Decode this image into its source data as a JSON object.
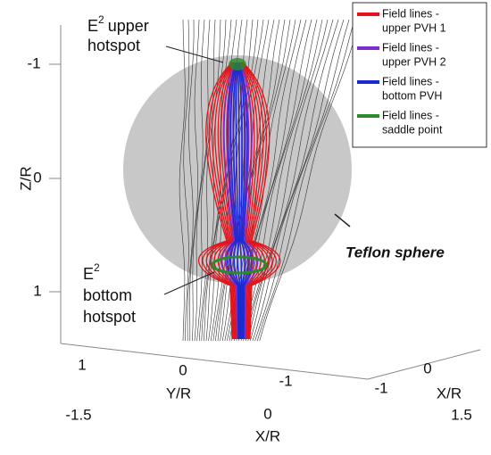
{
  "legend": [
    {
      "lines": [
        "Field lines -",
        "upper PVH 1"
      ],
      "color": "#e3141c"
    },
    {
      "lines": [
        "Field lines -",
        "upper PVH 2"
      ],
      "color": "#7b2fc8"
    },
    {
      "lines": [
        "Field lines -",
        "bottom PVH"
      ],
      "color": "#1b2bd1"
    },
    {
      "lines": [
        "Field lines -",
        "saddle point"
      ],
      "color": "#2b8a2b"
    }
  ],
  "annotations": {
    "upper_hotspot": {
      "symbol": "E",
      "exponent": "2",
      "first": "upper",
      "second": "hotspot"
    },
    "bottom_hotspot": {
      "symbol": "E",
      "exponent": "2",
      "first": "bottom",
      "second": "hotspot"
    },
    "sphere": "Teflon sphere"
  },
  "axes": {
    "z": {
      "label": "Z/R",
      "ticks": [
        -1,
        0,
        1
      ]
    },
    "y": {
      "label": "Y/R",
      "ticks": [
        1,
        0,
        -1
      ]
    },
    "x_right": {
      "label": "X/R",
      "ticks": [
        0,
        -1
      ]
    },
    "x_bottom": {
      "label": "X/R",
      "ticks": [
        -1.5,
        0,
        1.5
      ]
    }
  }
}
